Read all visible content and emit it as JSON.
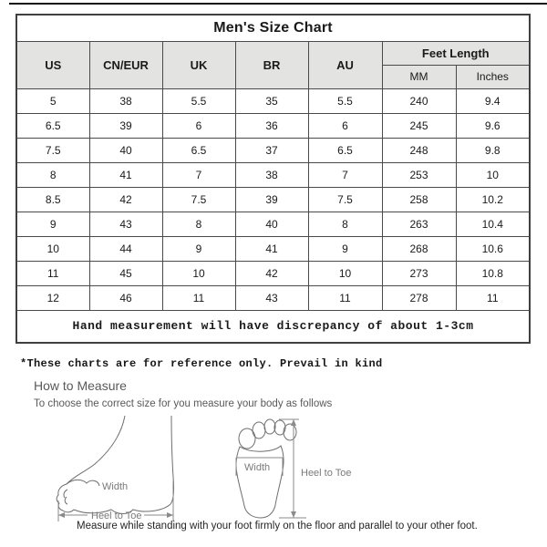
{
  "size_chart": {
    "title": "Men's Size Chart",
    "columns": [
      "US",
      "CN/EUR",
      "UK",
      "BR",
      "AU"
    ],
    "feet_length_label": "Feet Length",
    "sub_columns": [
      "MM",
      "Inches"
    ],
    "rows": [
      [
        "5",
        "38",
        "5.5",
        "35",
        "5.5",
        "240",
        "9.4"
      ],
      [
        "6.5",
        "39",
        "6",
        "36",
        "6",
        "245",
        "9.6"
      ],
      [
        "7.5",
        "40",
        "6.5",
        "37",
        "6.5",
        "248",
        "9.8"
      ],
      [
        "8",
        "41",
        "7",
        "38",
        "7",
        "253",
        "10"
      ],
      [
        "8.5",
        "42",
        "7.5",
        "39",
        "7.5",
        "258",
        "10.2"
      ],
      [
        "9",
        "43",
        "8",
        "40",
        "8",
        "263",
        "10.4"
      ],
      [
        "10",
        "44",
        "9",
        "41",
        "9",
        "268",
        "10.6"
      ],
      [
        "11",
        "45",
        "10",
        "42",
        "10",
        "273",
        "10.8"
      ],
      [
        "12",
        "46",
        "11",
        "43",
        "11",
        "278",
        "11"
      ]
    ],
    "footer_note": "Hand measurement will have discrepancy of about 1-3cm"
  },
  "notes": {
    "reference_note": "*These charts are for reference only. Prevail in kind",
    "how_to_measure_title": "How to Measure",
    "how_to_measure_sub": "To choose the correct size for you measure your body as follows",
    "measure_caption": "Measure while standing with your foot firmly on the floor and parallel to your other foot."
  },
  "illustration": {
    "side_width_label": "Width",
    "side_length_label": "Heel to Toe",
    "sole_width_label": "Width",
    "sole_length_label": "Heel to Toe"
  },
  "colors": {
    "header_bg": "#e3e3e1",
    "border": "#4a4a4a",
    "top_line": "#141414",
    "gray_text": "#595959"
  }
}
